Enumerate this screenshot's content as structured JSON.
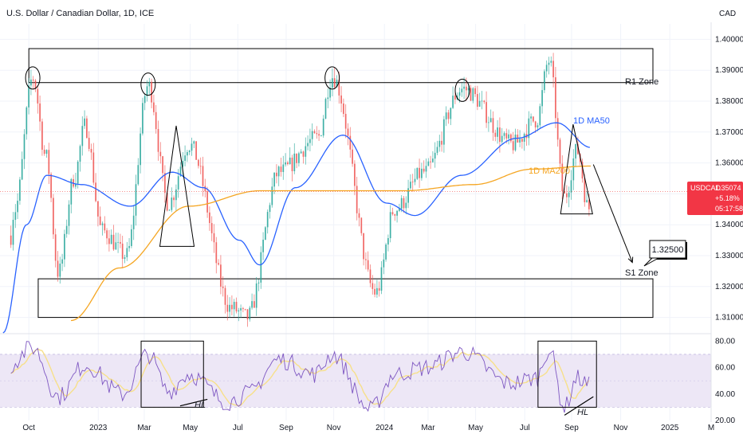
{
  "header": {
    "title": "U.S. Dollar / Canadian Dollar, 1D, ICE",
    "currency": "CAD"
  },
  "price_badge": {
    "symbol": "USDCAD",
    "price": "1.35074",
    "change": "+5.18%",
    "countdown": "05:17:58",
    "color": "#f23645"
  },
  "annotations": {
    "r1_zone": "R1 Zone",
    "s1_zone": "S1 Zone",
    "target": "1.32500",
    "ma50_label": "1D MA50",
    "ma200_label": "1D MA200",
    "hl_left": "HL",
    "hl_right": "HL"
  },
  "colors": {
    "up": "#26a69a",
    "down": "#ef5350",
    "ma50": "#2962ff",
    "ma200": "#f5a623",
    "rsi": "#7e57c2",
    "rsi_ma": "#f7e08a",
    "rsi_band": "#ede7f6",
    "grid": "#f0f3fa"
  },
  "chart_data": [
    {
      "type": "candlestick",
      "x_ticks": [
        "Oct",
        "2023",
        "Mar",
        "May",
        "Jul",
        "Sep",
        "Nov",
        "2024",
        "Mar",
        "May",
        "Jul",
        "Sep",
        "Nov",
        "2025",
        "M"
      ],
      "y_ticks": [
        1.31,
        1.32,
        1.33,
        1.34,
        1.35,
        1.36,
        1.37,
        1.38,
        1.39,
        1.4
      ],
      "ylim": [
        1.305,
        1.405
      ],
      "x_range": [
        "2022-09",
        "2025-03"
      ],
      "price_path": [
        [
          "2022-09-05",
          1.311
        ],
        [
          "2022-09-20",
          1.345
        ],
        [
          "2022-10-13",
          1.3875
        ],
        [
          "2022-10-30",
          1.362
        ],
        [
          "2022-11-15",
          1.3245
        ],
        [
          "2022-12-05",
          1.355
        ],
        [
          "2022-12-19",
          1.372
        ],
        [
          "2023-01-10",
          1.338
        ],
        [
          "2023-02-10",
          1.33
        ],
        [
          "2023-03-10",
          1.385
        ],
        [
          "2023-04-05",
          1.347
        ],
        [
          "2023-05-01",
          1.366
        ],
        [
          "2023-06-25",
          1.313
        ],
        [
          "2023-07-15",
          1.31
        ],
        [
          "2023-08-25",
          1.357
        ],
        [
          "2023-10-13",
          1.368
        ],
        [
          "2023-11-01",
          1.388
        ],
        [
          "2023-12-27",
          1.318
        ],
        [
          "2024-01-20",
          1.345
        ],
        [
          "2024-02-27",
          1.357
        ],
        [
          "2024-04-16",
          1.384
        ],
        [
          "2024-06-20",
          1.366
        ],
        [
          "2024-07-20",
          1.374
        ],
        [
          "2024-08-05",
          1.393
        ],
        [
          "2024-08-25",
          1.349
        ],
        [
          "2024-09-10",
          1.364
        ],
        [
          "2024-09-25",
          1.345
        ],
        [
          "2024-09-28",
          1.351
        ]
      ],
      "ma50_path": [
        [
          "2022-09-05",
          1.305
        ],
        [
          "2022-10-05",
          1.34
        ],
        [
          "2022-10-31",
          1.356
        ],
        [
          "2022-12-15",
          1.353
        ],
        [
          "2023-02-15",
          1.346
        ],
        [
          "2023-04-10",
          1.357
        ],
        [
          "2023-05-20",
          1.352
        ],
        [
          "2023-07-05",
          1.335
        ],
        [
          "2023-07-31",
          1.327
        ],
        [
          "2023-09-15",
          1.352
        ],
        [
          "2023-11-15",
          1.369
        ],
        [
          "2024-01-10",
          1.347
        ],
        [
          "2024-02-15",
          1.343
        ],
        [
          "2024-04-15",
          1.356
        ],
        [
          "2024-06-25",
          1.368
        ],
        [
          "2024-08-15",
          1.373
        ],
        [
          "2024-09-28",
          1.365
        ]
      ],
      "ma200_path": [
        [
          "2022-12-01",
          1.309
        ],
        [
          "2023-02-01",
          1.326
        ],
        [
          "2023-05-01",
          1.346
        ],
        [
          "2023-08-01",
          1.351
        ],
        [
          "2023-11-01",
          1.351
        ],
        [
          "2024-02-01",
          1.351
        ],
        [
          "2024-05-01",
          1.353
        ],
        [
          "2024-07-15",
          1.358
        ],
        [
          "2024-09-28",
          1.359
        ]
      ],
      "zones": [
        {
          "name": "R1 Zone",
          "from": "2022-10-08",
          "to": "2025-03-31",
          "low": 1.386,
          "high": 1.397
        },
        {
          "name": "S1 Zone",
          "from": "2022-10-20",
          "to": "2025-03-31",
          "low": 1.31,
          "high": 1.3225
        }
      ],
      "circled_highs": [
        [
          "2022-10-13",
          1.3875
        ],
        [
          "2023-03-10",
          1.3855
        ],
        [
          "2023-11-01",
          1.3875
        ],
        [
          "2024-04-16",
          1.3835
        ]
      ],
      "triangles": [
        {
          "apex": [
            "2023-04-15",
            1.372
          ],
          "base_left": [
            "2023-03-25",
            1.333
          ],
          "base_right": [
            "2023-05-08",
            1.333
          ]
        },
        {
          "apex": [
            "2024-09-05",
            1.3725
          ],
          "base_left": [
            "2024-08-20",
            1.3435
          ],
          "base_right": [
            "2024-09-30",
            1.3435
          ]
        }
      ],
      "projection": {
        "from": [
          "2024-10-01",
          1.3595
        ],
        "to": [
          "2024-11-20",
          1.3278
        ],
        "target": 1.325
      }
    },
    {
      "type": "line",
      "name": "RSI",
      "y_ticks": [
        20,
        40,
        60,
        80
      ],
      "ylim": [
        20,
        85
      ],
      "band": [
        30,
        70
      ],
      "rsi_anchors": [
        [
          "2022-09-05",
          58
        ],
        [
          "2022-10-13",
          75
        ],
        [
          "2022-11-15",
          38
        ],
        [
          "2022-12-19",
          62
        ],
        [
          "2023-02-05",
          40
        ],
        [
          "2023-03-10",
          70
        ],
        [
          "2023-04-05",
          42
        ],
        [
          "2023-05-01",
          55
        ],
        [
          "2023-06-20",
          34
        ],
        [
          "2023-07-15",
          40
        ],
        [
          "2023-08-25",
          66
        ],
        [
          "2023-10-10",
          55
        ],
        [
          "2023-11-01",
          70
        ],
        [
          "2023-12-20",
          28
        ],
        [
          "2024-01-20",
          55
        ],
        [
          "2024-03-01",
          60
        ],
        [
          "2024-04-16",
          72
        ],
        [
          "2024-06-15",
          48
        ],
        [
          "2024-07-20",
          52
        ],
        [
          "2024-08-05",
          74
        ],
        [
          "2024-08-25",
          30
        ],
        [
          "2024-09-10",
          52
        ],
        [
          "2024-09-28",
          46
        ]
      ],
      "boxes": [
        {
          "from": "2023-03-01",
          "to": "2023-05-20",
          "low": 30,
          "high": 80
        },
        {
          "from": "2024-07-22",
          "to": "2024-10-05",
          "low": 30,
          "high": 80
        }
      ],
      "hl_lines": [
        {
          "from": [
            "2023-04-20",
            31
          ],
          "to": [
            "2023-05-25",
            36
          ]
        },
        {
          "from": [
            "2024-08-25",
            24
          ],
          "to": [
            "2024-10-01",
            38
          ]
        }
      ]
    }
  ]
}
